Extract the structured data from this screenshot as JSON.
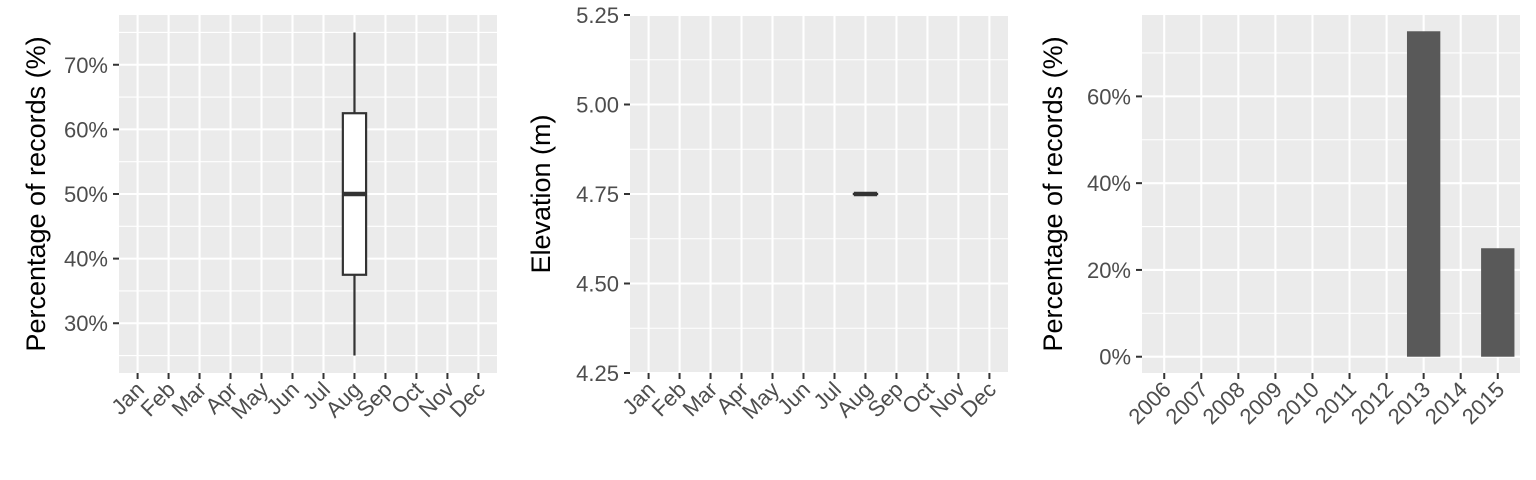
{
  "chart_data": [
    {
      "type": "box",
      "title": "",
      "xlabel": "",
      "ylabel": "Percentage of records (%)",
      "categories": [
        "Jan",
        "Feb",
        "Mar",
        "Apr",
        "May",
        "Jun",
        "Jul",
        "Aug",
        "Sep",
        "Oct",
        "Nov",
        "Dec"
      ],
      "yticks": [
        30,
        40,
        50,
        60,
        70
      ],
      "ytick_labels": [
        "30%",
        "40%",
        "50%",
        "60%",
        "70%"
      ],
      "ylim": [
        22.3,
        77.7
      ],
      "grid": true,
      "boxes": [
        {
          "category": "Aug",
          "min": 25,
          "q1": 37.5,
          "median": 50,
          "q3": 62.5,
          "max": 75
        }
      ]
    },
    {
      "type": "box",
      "title": "",
      "xlabel": "",
      "ylabel": "Elevation (m)",
      "categories": [
        "Jan",
        "Feb",
        "Mar",
        "Apr",
        "May",
        "Jun",
        "Jul",
        "Aug",
        "Sep",
        "Oct",
        "Nov",
        "Dec"
      ],
      "yticks": [
        4.25,
        4.5,
        4.75,
        5.0,
        5.25
      ],
      "ytick_labels": [
        "4.25",
        "4.50",
        "4.75",
        "5.00",
        "5.25"
      ],
      "ylim": [
        4.25,
        5.25
      ],
      "grid": true,
      "boxes": [
        {
          "category": "Aug",
          "min": 4.75,
          "q1": 4.75,
          "median": 4.75,
          "q3": 4.75,
          "max": 4.75
        }
      ]
    },
    {
      "type": "bar",
      "title": "",
      "xlabel": "",
      "ylabel": "Percentage of records (%)",
      "categories": [
        "2006",
        "2007",
        "2008",
        "2009",
        "2010",
        "2011",
        "2012",
        "2013",
        "2014",
        "2015"
      ],
      "values": [
        0,
        0,
        0,
        0,
        0,
        0,
        0,
        75,
        0,
        25
      ],
      "yticks": [
        0,
        20,
        40,
        60
      ],
      "ytick_labels": [
        "0%",
        "20%",
        "40%",
        "60%"
      ],
      "ylim": [
        -3.75,
        78.75
      ],
      "grid": true,
      "bar_color": "#595959"
    }
  ]
}
